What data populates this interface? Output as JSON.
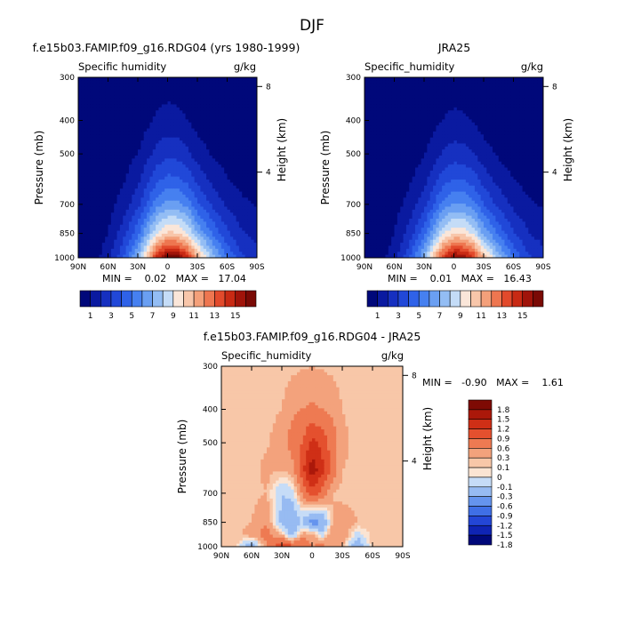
{
  "page": {
    "title": "DJF"
  },
  "panels": [
    {
      "key": "model",
      "title": "f.e15b03.FAMIP.f09_g16.RDG04 (yrs 1980-1999)",
      "left_label": "Specific humidity",
      "right_label": "g/kg",
      "minmax_text": "MIN =    0.02   MAX =   17.04"
    },
    {
      "key": "obs",
      "title": "JRA25",
      "left_label": "Specific_humidity",
      "right_label": "g/kg",
      "minmax_text": "MIN =    0.01   MAX =   16.43"
    },
    {
      "key": "diff",
      "title": "f.e15b03.FAMIP.f09_g16.RDG04 - JRA25",
      "left_label": "Specific_humidity",
      "right_label": "g/kg",
      "minmax_text": "MIN =   -0.90   MAX =    1.61"
    }
  ],
  "colors": {
    "full_levels": [
      "#00087a",
      "#0a1aa0",
      "#1630c0",
      "#2148d8",
      "#2f62e8",
      "#4680f0",
      "#6a9ff2",
      "#93bdf4",
      "#c4dcf7",
      "#fae6d9",
      "#f8c6aa",
      "#f4a07a",
      "#ee7650",
      "#e24a2c",
      "#c82a14",
      "#a0140a",
      "#7a0a05"
    ],
    "diff_levels": [
      "#00087a",
      "#0f24b4",
      "#2346d6",
      "#3f6fe6",
      "#6594ee",
      "#97bbf2",
      "#c6dcf7",
      "#fbe4d3",
      "#f8c7a8",
      "#f3a27c",
      "#ee7a52",
      "#e4502e",
      "#cf2f16",
      "#ab180a",
      "#7e0a04"
    ]
  },
  "chart_data": [
    {
      "type": "heatmap",
      "panel": "model",
      "subtype": "filled-contour latitude-pressure section",
      "title": "f.e15b03.FAMIP.f09_g16.RDG04 (yrs 1980-1999)",
      "xlabel": "",
      "ylabel": "Pressure (mb)",
      "ylabel_right": "Height (km)",
      "x_ticks": [
        "90N",
        "60N",
        "30N",
        "0",
        "30S",
        "60S",
        "90S"
      ],
      "y_ticks": [
        300,
        400,
        500,
        700,
        850,
        1000
      ],
      "y_right_ticks": [
        8,
        4
      ],
      "y_log_scale": true,
      "units": "g/kg",
      "min": 0.02,
      "max": 17.04,
      "colorbar_labels": [
        "1",
        "3",
        "5",
        "7",
        "9",
        "11",
        "13",
        "15"
      ],
      "levels": [
        1,
        2,
        3,
        4,
        5,
        6,
        7,
        8,
        9,
        10,
        11,
        12,
        13,
        14,
        15,
        16
      ],
      "field": {
        "lat": [
          90,
          75,
          60,
          45,
          30,
          20,
          10,
          0,
          -10,
          -20,
          -30,
          -45,
          -60,
          -75,
          -90
        ],
        "pressure": [
          300,
          400,
          500,
          600,
          700,
          850,
          925,
          1000
        ],
        "values": [
          [
            0.02,
            0.02,
            0.03,
            0.05,
            0.1,
            0.2,
            0.35,
            0.45,
            0.4,
            0.3,
            0.15,
            0.08,
            0.04,
            0.02,
            0.02
          ],
          [
            0.03,
            0.05,
            0.1,
            0.2,
            0.45,
            0.8,
            1.2,
            1.4,
            1.3,
            1.0,
            0.6,
            0.3,
            0.15,
            0.08,
            0.05
          ],
          [
            0.05,
            0.1,
            0.25,
            0.5,
            1.0,
            1.7,
            2.4,
            2.7,
            2.6,
            2.2,
            1.5,
            0.9,
            0.5,
            0.3,
            0.2
          ],
          [
            0.08,
            0.15,
            0.4,
            0.9,
            1.8,
            2.9,
            3.9,
            4.4,
            4.3,
            3.8,
            2.8,
            1.8,
            1.1,
            0.7,
            0.5
          ],
          [
            0.1,
            0.2,
            0.6,
            1.4,
            2.7,
            4.2,
            5.7,
            6.4,
            6.3,
            5.6,
            4.2,
            2.8,
            1.8,
            1.2,
            0.9
          ],
          [
            0.15,
            0.35,
            1.0,
            2.5,
            4.7,
            7.0,
            9.2,
            10.3,
            10.1,
            9.0,
            7.0,
            4.9,
            3.2,
            2.1,
            1.6
          ],
          [
            0.2,
            0.45,
            1.3,
            3.2,
            6.0,
            9.0,
            12.0,
            13.4,
            13.1,
            11.7,
            9.1,
            6.3,
            4.1,
            2.6,
            2.0
          ],
          [
            0.25,
            0.55,
            1.6,
            3.9,
            7.3,
            11.0,
            14.6,
            17.0,
            16.6,
            14.5,
            11.2,
            7.8,
            5.0,
            3.2,
            2.4
          ]
        ]
      }
    },
    {
      "type": "heatmap",
      "panel": "obs",
      "subtype": "filled-contour latitude-pressure section",
      "title": "JRA25",
      "xlabel": "",
      "ylabel": "Pressure (mb)",
      "ylabel_right": "Height (km)",
      "x_ticks": [
        "90N",
        "60N",
        "30N",
        "0",
        "30S",
        "60S",
        "90S"
      ],
      "y_ticks": [
        300,
        400,
        500,
        700,
        850,
        1000
      ],
      "y_right_ticks": [
        8,
        4
      ],
      "y_log_scale": true,
      "units": "g/kg",
      "min": 0.01,
      "max": 16.43,
      "colorbar_labels": [
        "1",
        "3",
        "5",
        "7",
        "9",
        "11",
        "13",
        "15"
      ],
      "levels": [
        1,
        2,
        3,
        4,
        5,
        6,
        7,
        8,
        9,
        10,
        11,
        12,
        13,
        14,
        15,
        16
      ],
      "field": {
        "lat": [
          90,
          75,
          60,
          45,
          30,
          20,
          10,
          0,
          -10,
          -20,
          -30,
          -45,
          -60,
          -75,
          -90
        ],
        "pressure": [
          300,
          400,
          500,
          600,
          700,
          850,
          925,
          1000
        ],
        "values": [
          [
            0.01,
            0.02,
            0.03,
            0.05,
            0.09,
            0.18,
            0.3,
            0.4,
            0.36,
            0.26,
            0.13,
            0.07,
            0.03,
            0.02,
            0.01
          ],
          [
            0.03,
            0.05,
            0.09,
            0.18,
            0.4,
            0.7,
            1.05,
            1.25,
            1.15,
            0.9,
            0.55,
            0.28,
            0.14,
            0.07,
            0.05
          ],
          [
            0.05,
            0.1,
            0.22,
            0.45,
            0.9,
            1.55,
            2.2,
            2.45,
            2.35,
            2.0,
            1.4,
            0.85,
            0.48,
            0.28,
            0.2
          ],
          [
            0.08,
            0.15,
            0.38,
            0.85,
            1.7,
            2.75,
            3.7,
            4.15,
            4.05,
            3.6,
            2.65,
            1.7,
            1.05,
            0.68,
            0.5
          ],
          [
            0.1,
            0.2,
            0.58,
            1.35,
            2.6,
            4.0,
            5.45,
            6.1,
            6.0,
            5.35,
            4.0,
            2.7,
            1.75,
            1.15,
            0.9
          ],
          [
            0.15,
            0.35,
            0.98,
            2.4,
            4.55,
            6.8,
            8.9,
            9.95,
            9.75,
            8.7,
            6.8,
            4.75,
            3.1,
            2.05,
            1.6
          ],
          [
            0.2,
            0.45,
            1.28,
            3.1,
            5.85,
            8.75,
            11.65,
            13.0,
            12.7,
            11.35,
            8.85,
            6.1,
            4.0,
            2.55,
            2.0
          ],
          [
            0.25,
            0.55,
            1.58,
            3.8,
            7.1,
            10.7,
            14.1,
            16.4,
            16.0,
            14.0,
            10.9,
            7.6,
            4.9,
            3.15,
            2.4
          ]
        ]
      }
    },
    {
      "type": "heatmap",
      "panel": "diff",
      "subtype": "filled-contour latitude-pressure difference section",
      "title": "f.e15b03.FAMIP.f09_g16.RDG04 - JRA25",
      "xlabel": "",
      "ylabel": "Pressure (mb)",
      "ylabel_right": "Height (km)",
      "x_ticks": [
        "90N",
        "60N",
        "30N",
        "0",
        "30S",
        "60S",
        "90S"
      ],
      "y_ticks": [
        300,
        400,
        500,
        700,
        850,
        1000
      ],
      "y_right_ticks": [
        8,
        4
      ],
      "y_log_scale": true,
      "units": "g/kg",
      "min": -0.9,
      "max": 1.61,
      "colorbar_labels": [
        "1.8",
        "1.5",
        "1.2",
        "0.9",
        "0.6",
        "0.3",
        "0.1",
        "0",
        "-0.1",
        "-0.3",
        "-0.6",
        "-0.9",
        "-1.2",
        "-1.5",
        "-1.8"
      ],
      "levels": [
        -1.8,
        -1.5,
        -1.2,
        -0.9,
        -0.6,
        -0.3,
        -0.1,
        0,
        0.1,
        0.3,
        0.6,
        0.9,
        1.2,
        1.5
      ],
      "field": {
        "lat": [
          90,
          75,
          60,
          45,
          30,
          20,
          10,
          0,
          -10,
          -20,
          -30,
          -45,
          -60,
          -75,
          -90
        ],
        "pressure": [
          300,
          400,
          500,
          600,
          700,
          850,
          925,
          1000
        ],
        "values": [
          [
            0.0,
            0.0,
            0.01,
            0.01,
            0.02,
            0.05,
            0.08,
            0.1,
            0.08,
            0.05,
            0.02,
            0.01,
            0.0,
            0.0,
            0.0
          ],
          [
            0.0,
            0.01,
            0.02,
            0.05,
            0.1,
            0.25,
            0.3,
            0.35,
            0.3,
            0.25,
            0.1,
            0.02,
            0.01,
            0.0,
            0.0
          ],
          [
            0.0,
            0.01,
            0.03,
            0.08,
            0.2,
            0.4,
            0.6,
            1.0,
            0.8,
            0.45,
            0.15,
            0.05,
            0.02,
            0.01,
            0.0
          ],
          [
            0.0,
            0.02,
            0.05,
            0.15,
            0.1,
            0.2,
            0.8,
            1.4,
            1.0,
            0.5,
            0.1,
            0.05,
            0.02,
            0.01,
            0.0
          ],
          [
            0.0,
            0.02,
            0.05,
            0.1,
            -0.3,
            -0.2,
            0.3,
            0.8,
            0.5,
            0.1,
            0.05,
            0.05,
            0.02,
            0.01,
            0.0
          ],
          [
            0.0,
            0.05,
            0.1,
            0.3,
            -0.4,
            -0.6,
            -0.3,
            -0.8,
            -0.6,
            0.1,
            0.2,
            0.1,
            0.05,
            0.02,
            0.0
          ],
          [
            0.0,
            0.05,
            0.2,
            0.4,
            0.1,
            -0.4,
            0.2,
            0.2,
            -0.2,
            0.3,
            0.3,
            -0.2,
            0.05,
            0.0,
            0.0
          ],
          [
            0.0,
            0.05,
            -0.6,
            0.3,
            0.9,
            0.7,
            0.6,
            0.3,
            0.4,
            0.2,
            0.1,
            -0.6,
            0.05,
            0.0,
            0.0
          ]
        ]
      }
    }
  ]
}
